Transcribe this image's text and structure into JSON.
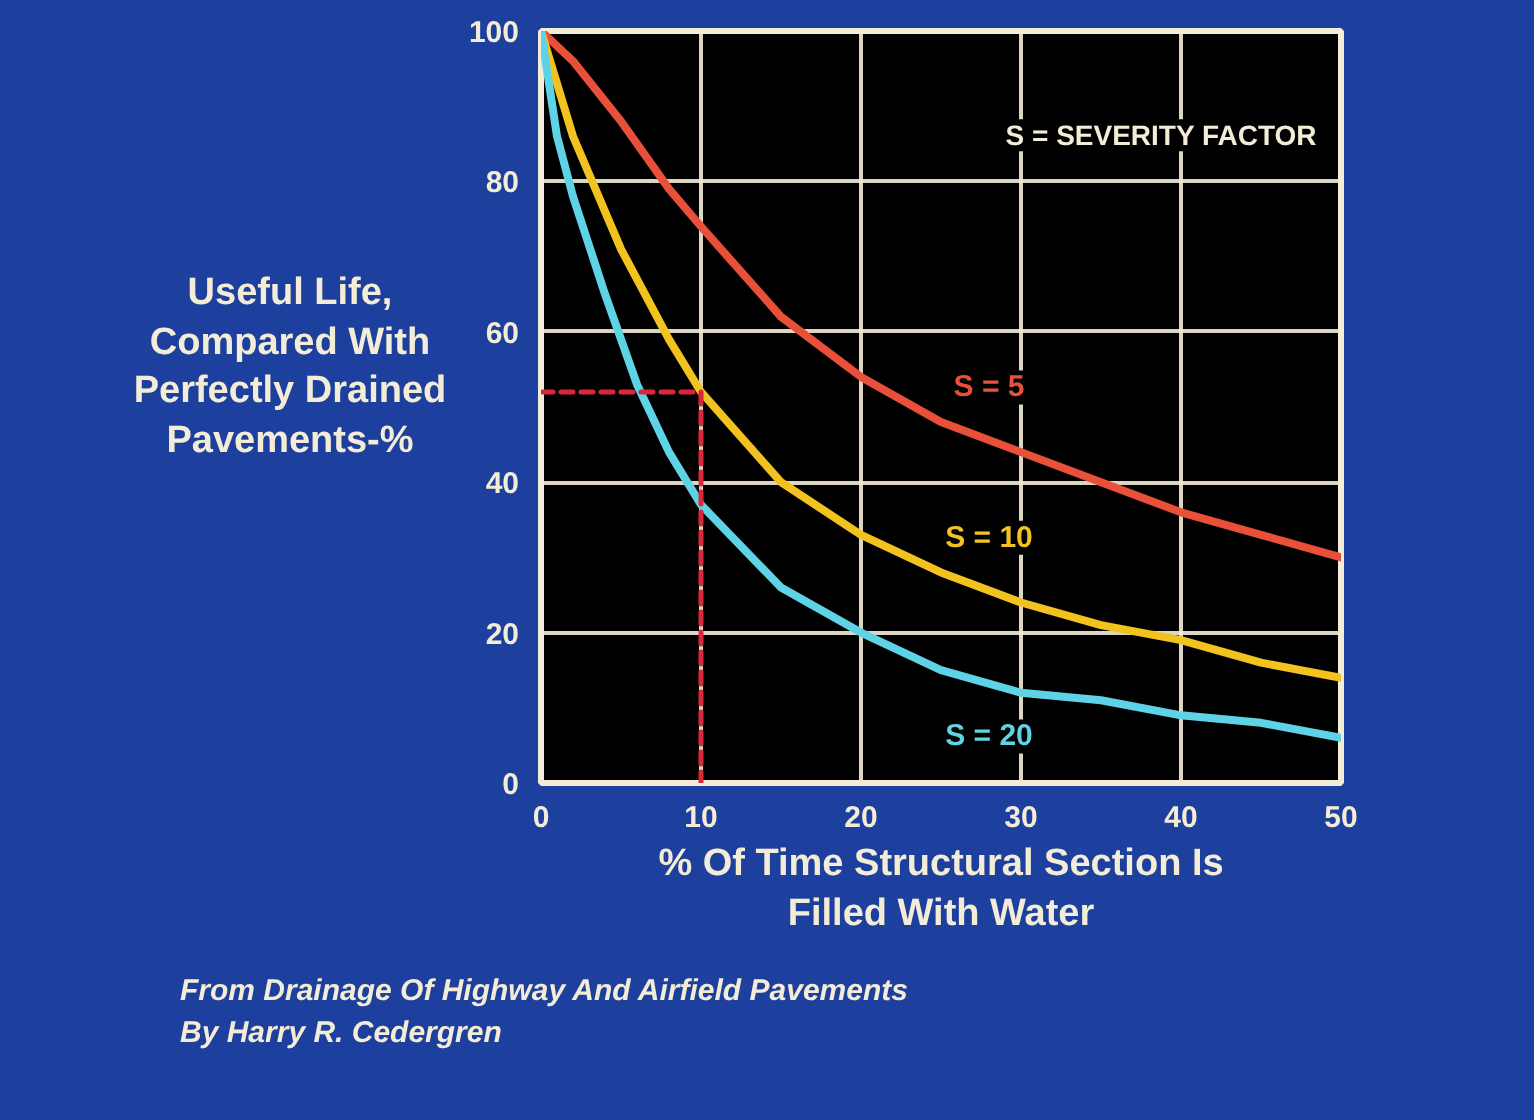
{
  "chart_data": {
    "type": "line",
    "ylabel": "Useful Life, Compared With Perfectly Drained Pavements-%",
    "xlabel": "% Of Time Structural Section Is Filled With Water",
    "x": [
      0,
      2,
      5,
      8,
      10,
      15,
      20,
      25,
      30,
      35,
      40,
      45,
      50
    ],
    "series": [
      {
        "name": "S = 5",
        "color": "#e8503a",
        "values": [
          100,
          96,
          88,
          79,
          74,
          62,
          54,
          48,
          44,
          40,
          36,
          33,
          30
        ]
      },
      {
        "name": "S = 10",
        "color": "#f2c21e",
        "values": [
          100,
          86,
          71,
          59,
          52,
          40,
          33,
          28,
          24,
          21,
          19,
          16,
          14
        ]
      },
      {
        "name": "S = 20",
        "color": "#5fd3e6",
        "x": [
          0,
          1,
          2,
          4,
          6,
          8,
          10,
          15,
          20,
          25,
          30,
          35,
          40,
          45,
          50
        ],
        "values": [
          100,
          86,
          78,
          65,
          53,
          44,
          37,
          26,
          20,
          15,
          12,
          11,
          9,
          8,
          6
        ]
      },
      {
        "type": "line",
        "color": "#d8283a",
        "line_style": "dashed",
        "x": [
          0,
          10,
          10
        ],
        "values": [
          52,
          52,
          0
        ]
      }
    ],
    "xlim": [
      0,
      50
    ],
    "xticks": [
      0,
      10,
      20,
      30,
      40,
      50
    ],
    "ylim": [
      0,
      100
    ],
    "yticks": [
      0,
      20,
      40,
      60,
      80,
      100
    ],
    "grid": true,
    "line_style": "solid",
    "annotations": [
      "S = SEVERITY FACTOR",
      "From Drainage Of Highway And Airfield Pavements",
      "By Harry R. Cedergren"
    ]
  }
}
